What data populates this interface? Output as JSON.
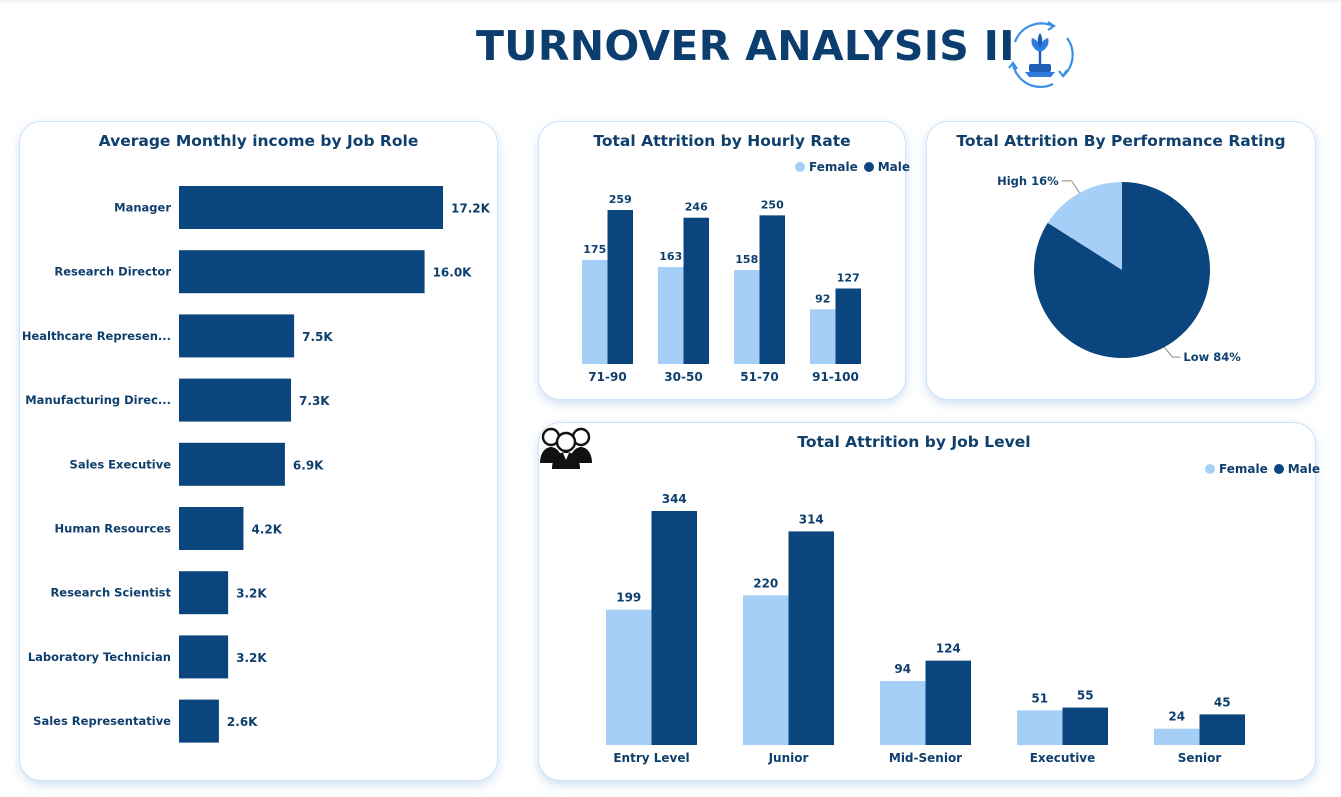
{
  "page": {
    "title": "TURNOVER ANALYSIS II"
  },
  "colors": {
    "female": "#a6cff8",
    "male": "#0a457d",
    "title": "#0b3d6f",
    "card_border": "#cfe1f6"
  },
  "icons": {
    "logo": "sprout-cycle-icon",
    "job_level": "people-group-icon"
  },
  "chart_data": [
    {
      "id": "income",
      "type": "bar",
      "orientation": "horizontal",
      "title": "Average Monthly income by Job Role",
      "categories": [
        "Manager",
        "Research Director",
        "Healthcare Represen...",
        "Manufacturing Direc...",
        "Sales Executive",
        "Human Resources",
        "Research Scientist",
        "Laboratory Technician",
        "Sales Representative"
      ],
      "values": [
        17.2,
        16.0,
        7.5,
        7.3,
        6.9,
        4.2,
        3.2,
        3.2,
        2.6
      ],
      "labels": [
        "17.2K",
        "16.0K",
        "7.5K",
        "7.3K",
        "6.9K",
        "4.2K",
        "3.2K",
        "3.2K",
        "2.6K"
      ],
      "xlim": [
        0,
        17.2
      ],
      "grid": false
    },
    {
      "id": "hourly",
      "type": "bar",
      "title": "Total Attrition by Hourly Rate",
      "categories": [
        "71-90",
        "30-50",
        "51-70",
        "91-100"
      ],
      "series": [
        {
          "name": "Female",
          "values": [
            175,
            163,
            158,
            92
          ]
        },
        {
          "name": "Male",
          "values": [
            259,
            246,
            250,
            127
          ]
        }
      ],
      "ylim": [
        0,
        259
      ],
      "legend": "top-right",
      "grid": false
    },
    {
      "id": "performance",
      "type": "pie",
      "title": "Total Attrition By Performance Rating",
      "slices": [
        {
          "label": "High",
          "value": 16,
          "text": "High 16%"
        },
        {
          "label": "Low",
          "value": 84,
          "text": "Low 84%"
        }
      ]
    },
    {
      "id": "joblevel",
      "type": "bar",
      "title": "Total Attrition by Job Level",
      "categories": [
        "Entry Level",
        "Junior",
        "Mid-Senior",
        "Executive",
        "Senior"
      ],
      "series": [
        {
          "name": "Female",
          "values": [
            199,
            220,
            94,
            51,
            24
          ]
        },
        {
          "name": "Male",
          "values": [
            344,
            314,
            124,
            55,
            45
          ]
        }
      ],
      "ylim": [
        0,
        344
      ],
      "legend": "top-right",
      "grid": false
    }
  ]
}
